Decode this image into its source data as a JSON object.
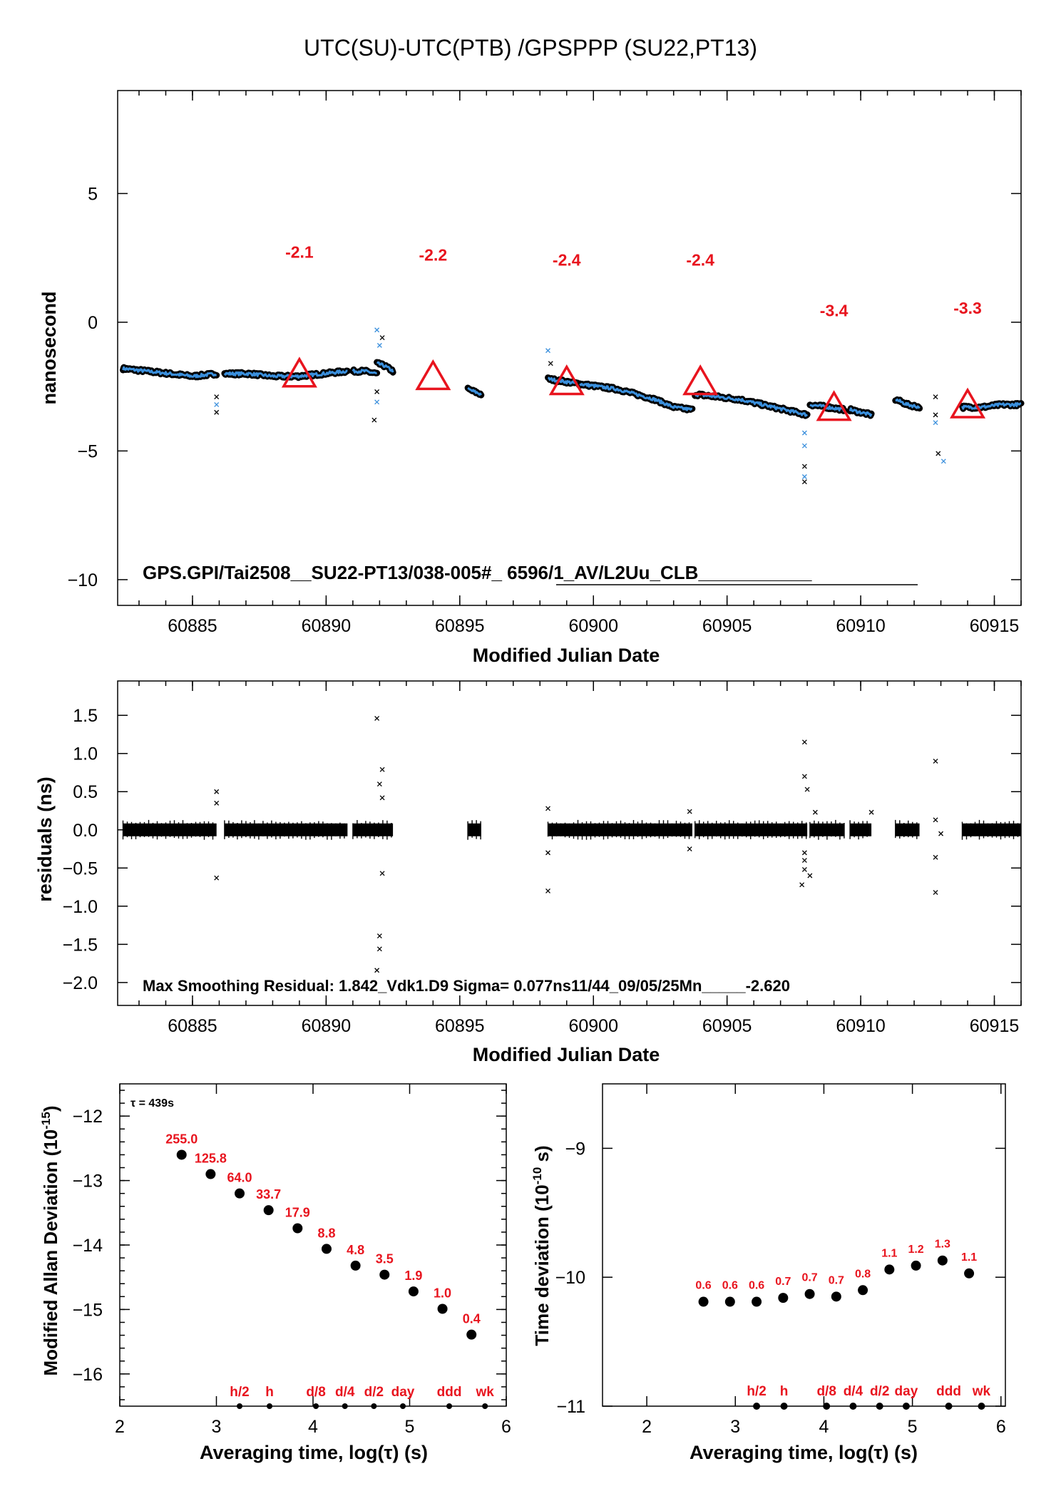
{
  "title": "UTC(SU)-UTC(PTB)  /GPSPPP  (SU22,PT13)",
  "chart_data": [
    {
      "id": "top",
      "type": "scatter",
      "xlabel": "Modified Julian Date",
      "ylabel": "nanosecond",
      "xlim": [
        60882.2,
        60916
      ],
      "ylim": [
        -11,
        9
      ],
      "xticks": [
        60885,
        60890,
        60895,
        60900,
        60905,
        60910,
        60915
      ],
      "yticks": [
        -10,
        -5,
        0,
        5
      ],
      "ytick_labels": [
        "−10",
        "−5",
        "0",
        "5"
      ],
      "footer": "GPS.GPI/Tai2508__SU22-PT13/038-005#_  6596/1_AV/L2Uu_CLB___________",
      "markers": [
        {
          "x": 60889,
          "y": -2.1,
          "label": "-2.1"
        },
        {
          "x": 60894,
          "y": -2.2,
          "label": "-2.2"
        },
        {
          "x": 60899,
          "y": -2.4,
          "label": "-2.4"
        },
        {
          "x": 60904,
          "y": -2.4,
          "label": "-2.4"
        },
        {
          "x": 60909,
          "y": -3.4,
          "label": "-3.4"
        },
        {
          "x": 60914,
          "y": -3.3,
          "label": "-3.3"
        }
      ],
      "segments": [
        {
          "x0": 60882.4,
          "x1": 60885.9,
          "y": [
            -1.8,
            -1.9,
            -2.0,
            -2.1,
            -2.0
          ]
        },
        {
          "x0": 60886.2,
          "x1": 60890.8,
          "y": [
            -2.0,
            -2.0,
            -2.1,
            -2.1,
            -2.0,
            -1.9
          ]
        },
        {
          "x0": 60891.0,
          "x1": 60891.9,
          "y": [
            -1.9,
            -1.9,
            -2.0
          ]
        },
        {
          "x0": 60891.9,
          "x1": 60892.5,
          "y": [
            -1.6,
            -1.7,
            -1.9
          ]
        },
        {
          "x0": 60895.3,
          "x1": 60895.8,
          "y": [
            -2.6,
            -2.7,
            -2.8
          ]
        },
        {
          "x0": 60898.3,
          "x1": 60899.5,
          "y": [
            -2.2,
            -2.3,
            -2.4
          ]
        },
        {
          "x0": 60899.5,
          "x1": 60903.7,
          "y": [
            -2.4,
            -2.5,
            -2.6,
            -2.8,
            -3.0,
            -3.3,
            -3.4
          ]
        },
        {
          "x0": 60903.8,
          "x1": 60908.0,
          "y": [
            -2.8,
            -2.9,
            -3.0,
            -3.2,
            -3.4,
            -3.6
          ]
        },
        {
          "x0": 60908.1,
          "x1": 60909.4,
          "y": [
            -3.2,
            -3.3,
            -3.4
          ]
        },
        {
          "x0": 60909.6,
          "x1": 60910.4,
          "y": [
            -3.4,
            -3.5,
            -3.6
          ]
        },
        {
          "x0": 60911.3,
          "x1": 60912.2,
          "y": [
            -3.0,
            -3.2,
            -3.3
          ]
        },
        {
          "x0": 60913.8,
          "x1": 60916.0,
          "y": [
            -3.3,
            -3.3,
            -3.2,
            -3.2
          ]
        }
      ],
      "outliers": [
        {
          "x": 60885.9,
          "y": -2.9
        },
        {
          "x": 60885.9,
          "y": -3.2
        },
        {
          "x": 60885.9,
          "y": -3.5
        },
        {
          "x": 60891.9,
          "y": -0.3
        },
        {
          "x": 60892.1,
          "y": -0.6
        },
        {
          "x": 60892.0,
          "y": -0.9
        },
        {
          "x": 60891.9,
          "y": -2.7
        },
        {
          "x": 60891.9,
          "y": -3.1
        },
        {
          "x": 60891.8,
          "y": -3.8
        },
        {
          "x": 60898.3,
          "y": -1.1
        },
        {
          "x": 60898.4,
          "y": -1.6
        },
        {
          "x": 60907.9,
          "y": -4.8
        },
        {
          "x": 60907.9,
          "y": -5.6
        },
        {
          "x": 60907.9,
          "y": -6.0
        },
        {
          "x": 60907.9,
          "y": -6.2
        },
        {
          "x": 60907.9,
          "y": -4.3
        },
        {
          "x": 60912.8,
          "y": -2.9
        },
        {
          "x": 60912.8,
          "y": -3.9
        },
        {
          "x": 60912.9,
          "y": -5.1
        },
        {
          "x": 60913.1,
          "y": -5.4
        },
        {
          "x": 60912.8,
          "y": -3.6
        }
      ]
    },
    {
      "id": "resid",
      "type": "scatter",
      "xlabel": "Modified Julian Date",
      "ylabel": "residuals (ns)",
      "xlim": [
        60882.2,
        60916
      ],
      "ylim": [
        -2.3,
        1.95
      ],
      "xticks": [
        60885,
        60890,
        60895,
        60900,
        60905,
        60910,
        60915
      ],
      "yticks": [
        -2.0,
        -1.5,
        -1.0,
        -0.5,
        0.0,
        0.5,
        1.0,
        1.5
      ],
      "ytick_labels": [
        "−2.0",
        "−1.5",
        "−1.0",
        "−0.5",
        "0.0",
        "0.5",
        "1.0",
        "1.5"
      ],
      "footer": "Max Smoothing Residual: 1.842_Vdk1.D9  Sigma= 0.077ns11/44_09/05/25Mn_____-2.620",
      "bands": [
        [
          60882.4,
          60885.9
        ],
        [
          60886.2,
          60890.8
        ],
        [
          60891.0,
          60892.5
        ],
        [
          60895.3,
          60895.8
        ],
        [
          60898.3,
          60903.7
        ],
        [
          60903.8,
          60908.0
        ],
        [
          60908.1,
          60909.4
        ],
        [
          60909.6,
          60910.4
        ],
        [
          60911.3,
          60912.2
        ],
        [
          60913.8,
          60916.0
        ]
      ],
      "outliers": [
        {
          "x": 60885.9,
          "y": 0.5
        },
        {
          "x": 60885.9,
          "y": 0.35
        },
        {
          "x": 60885.9,
          "y": -0.63
        },
        {
          "x": 60891.9,
          "y": 1.46
        },
        {
          "x": 60892.1,
          "y": 0.79
        },
        {
          "x": 60892.0,
          "y": 0.6
        },
        {
          "x": 60892.1,
          "y": 0.42
        },
        {
          "x": 60892.1,
          "y": -0.57
        },
        {
          "x": 60892.0,
          "y": -1.39
        },
        {
          "x": 60892.0,
          "y": -1.56
        },
        {
          "x": 60891.9,
          "y": -1.84
        },
        {
          "x": 60898.3,
          "y": 0.28
        },
        {
          "x": 60898.3,
          "y": -0.3
        },
        {
          "x": 60898.3,
          "y": -0.8
        },
        {
          "x": 60903.6,
          "y": 0.24
        },
        {
          "x": 60903.6,
          "y": -0.25
        },
        {
          "x": 60907.9,
          "y": 1.15
        },
        {
          "x": 60907.9,
          "y": 0.7
        },
        {
          "x": 60908.0,
          "y": 0.53
        },
        {
          "x": 60907.9,
          "y": -0.4
        },
        {
          "x": 60907.9,
          "y": -0.52
        },
        {
          "x": 60908.1,
          "y": -0.6
        },
        {
          "x": 60907.8,
          "y": -0.72
        },
        {
          "x": 60907.9,
          "y": -0.3
        },
        {
          "x": 60908.3,
          "y": 0.23
        },
        {
          "x": 60910.4,
          "y": 0.23
        },
        {
          "x": 60912.8,
          "y": 0.9
        },
        {
          "x": 60912.8,
          "y": 0.13
        },
        {
          "x": 60912.8,
          "y": -0.36
        },
        {
          "x": 60912.8,
          "y": -0.82
        },
        {
          "x": 60913.0,
          "y": -0.05
        }
      ]
    },
    {
      "id": "mdev",
      "type": "scatter",
      "xlabel": "Averaging time, log(τ) (s)",
      "ylabel": "Modified Allan Deviation (10-15)",
      "ylabel_main": "Modified Allan Deviation (10",
      "ylabel_exp": "-15",
      "ylabel_tail": ")",
      "tau_label": "τ = 439s",
      "xlim": [
        2,
        6
      ],
      "ylim": [
        -16.5,
        -11.5
      ],
      "xticks": [
        2,
        3,
        4,
        5,
        6
      ],
      "yticks": [
        -16,
        -15,
        -14,
        -13,
        -12
      ],
      "ytick_labels": [
        "−16",
        "−15",
        "−14",
        "−13",
        "−12"
      ],
      "points": [
        {
          "x": 2.64,
          "y": -12.6,
          "label": "255.0"
        },
        {
          "x": 2.94,
          "y": -12.9,
          "label": "125.8"
        },
        {
          "x": 3.24,
          "y": -13.2,
          "label": "64.0"
        },
        {
          "x": 3.54,
          "y": -13.46,
          "label": "33.7"
        },
        {
          "x": 3.84,
          "y": -13.74,
          "label": "17.9"
        },
        {
          "x": 4.14,
          "y": -14.06,
          "label": "8.8"
        },
        {
          "x": 4.44,
          "y": -14.32,
          "label": "4.8"
        },
        {
          "x": 4.74,
          "y": -14.46,
          "label": "3.5"
        },
        {
          "x": 5.04,
          "y": -14.72,
          "label": "1.9"
        },
        {
          "x": 5.34,
          "y": -14.99,
          "label": "1.0"
        },
        {
          "x": 5.64,
          "y": -15.39,
          "label": "0.4"
        }
      ],
      "marks": [
        {
          "x": 3.24,
          "label": "h/2"
        },
        {
          "x": 3.55,
          "label": "h"
        },
        {
          "x": 4.03,
          "label": "d/8"
        },
        {
          "x": 4.33,
          "label": "d/4"
        },
        {
          "x": 4.63,
          "label": "d/2"
        },
        {
          "x": 4.93,
          "label": "day"
        },
        {
          "x": 5.41,
          "label": "ddd"
        },
        {
          "x": 5.78,
          "label": "wk"
        }
      ]
    },
    {
      "id": "tdev",
      "type": "scatter",
      "xlabel": "Averaging time, log(τ) (s)",
      "ylabel": "Time deviation (10-10 s)",
      "ylabel_main": "Time deviation (10",
      "ylabel_exp": "-10",
      "ylabel_tail": " s)",
      "xlim": [
        1.5,
        6.05
      ],
      "ylim": [
        -11,
        -8.5
      ],
      "xticks": [
        2,
        3,
        4,
        5,
        6
      ],
      "yticks": [
        -11,
        -10,
        -9
      ],
      "ytick_labels": [
        "−11",
        "−10",
        "−9"
      ],
      "points": [
        {
          "x": 2.64,
          "y": -10.19,
          "label": "0.6"
        },
        {
          "x": 2.94,
          "y": -10.19,
          "label": "0.6"
        },
        {
          "x": 3.24,
          "y": -10.19,
          "label": "0.6"
        },
        {
          "x": 3.54,
          "y": -10.16,
          "label": "0.7"
        },
        {
          "x": 3.84,
          "y": -10.13,
          "label": "0.7"
        },
        {
          "x": 4.14,
          "y": -10.15,
          "label": "0.7"
        },
        {
          "x": 4.44,
          "y": -10.1,
          "label": "0.8"
        },
        {
          "x": 4.74,
          "y": -9.94,
          "label": "1.1"
        },
        {
          "x": 5.04,
          "y": -9.91,
          "label": "1.2"
        },
        {
          "x": 5.34,
          "y": -9.87,
          "label": "1.3"
        },
        {
          "x": 5.64,
          "y": -9.97,
          "label": "1.1"
        }
      ],
      "marks": [
        {
          "x": 3.24,
          "label": "h/2"
        },
        {
          "x": 3.55,
          "label": "h"
        },
        {
          "x": 4.03,
          "label": "d/8"
        },
        {
          "x": 4.33,
          "label": "d/4"
        },
        {
          "x": 4.63,
          "label": "d/2"
        },
        {
          "x": 4.93,
          "label": "day"
        },
        {
          "x": 5.41,
          "label": "ddd"
        },
        {
          "x": 5.78,
          "label": "wk"
        }
      ]
    }
  ],
  "colors": {
    "series": "#3a8fdc",
    "marker": "#e8141e",
    "ink": "#000000"
  }
}
